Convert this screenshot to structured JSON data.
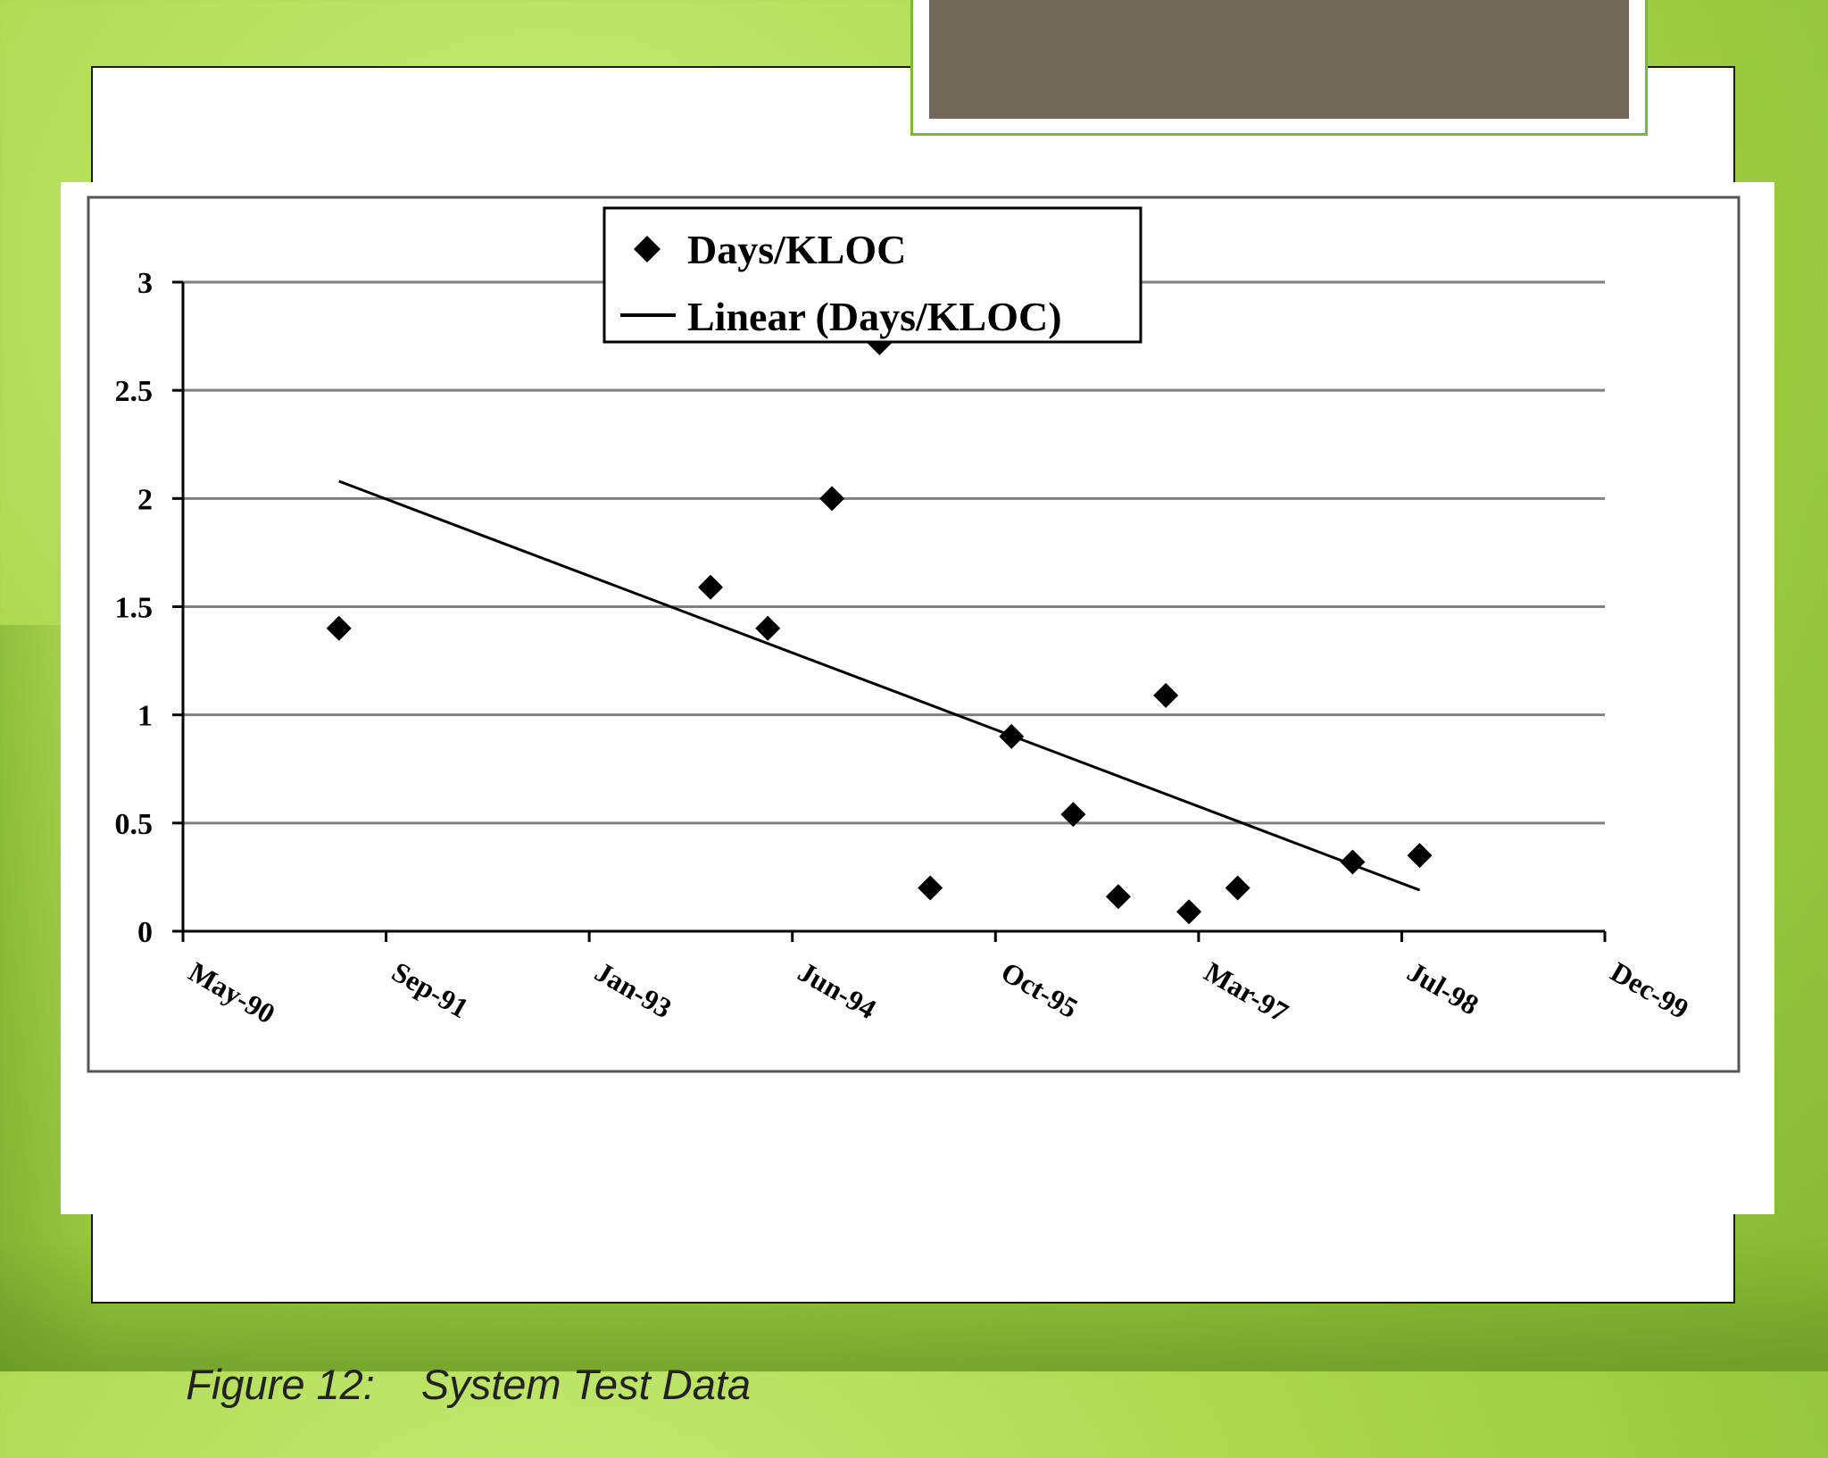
{
  "slide": {
    "caption_label": "Figure 12:",
    "caption_text": "System Test Data"
  },
  "colors": {
    "background": "#a9d64a",
    "title_box_fill": "#726859",
    "title_box_border": "#7ab83a",
    "gridline": "#808080",
    "marker": "#000000",
    "trendline": "#000000"
  },
  "chart_data": {
    "type": "scatter",
    "title": "",
    "xlabel": "",
    "ylabel": "",
    "x_ticks": [
      "May-90",
      "Sep-91",
      "Jan-93",
      "Jun-94",
      "Oct-95",
      "Mar-97",
      "Jul-98",
      "Dec-99"
    ],
    "xlim": [
      "1990-05-01",
      "1999-12-01"
    ],
    "ylim": [
      0,
      3
    ],
    "y_ticks": [
      "0",
      "0.5",
      "1",
      "1.5",
      "2",
      "2.5",
      "3"
    ],
    "grid": true,
    "legend": "top-center",
    "series": [
      {
        "name": "Days/KLOC",
        "marker": "diamond",
        "points": [
          {
            "x": "1991-05-20",
            "y": 1.4
          },
          {
            "x": "1993-11-20",
            "y": 1.59
          },
          {
            "x": "1994-04-10",
            "y": 1.4
          },
          {
            "x": "1994-09-15",
            "y": 2.0
          },
          {
            "x": "1995-01-10",
            "y": 2.72
          },
          {
            "x": "1995-05-15",
            "y": 0.2
          },
          {
            "x": "1995-12-01",
            "y": 0.9
          },
          {
            "x": "1996-05-01",
            "y": 0.54
          },
          {
            "x": "1996-08-20",
            "y": 0.16
          },
          {
            "x": "1996-12-15",
            "y": 1.09
          },
          {
            "x": "1997-02-10",
            "y": 0.09
          },
          {
            "x": "1997-06-10",
            "y": 0.2
          },
          {
            "x": "1998-03-20",
            "y": 0.32
          },
          {
            "x": "1998-09-01",
            "y": 0.35
          }
        ]
      },
      {
        "name": "Linear (Days/KLOC)",
        "type": "trendline",
        "points": [
          {
            "x": "1991-05-20",
            "y": 2.08
          },
          {
            "x": "1998-09-01",
            "y": 0.19
          }
        ]
      }
    ]
  }
}
